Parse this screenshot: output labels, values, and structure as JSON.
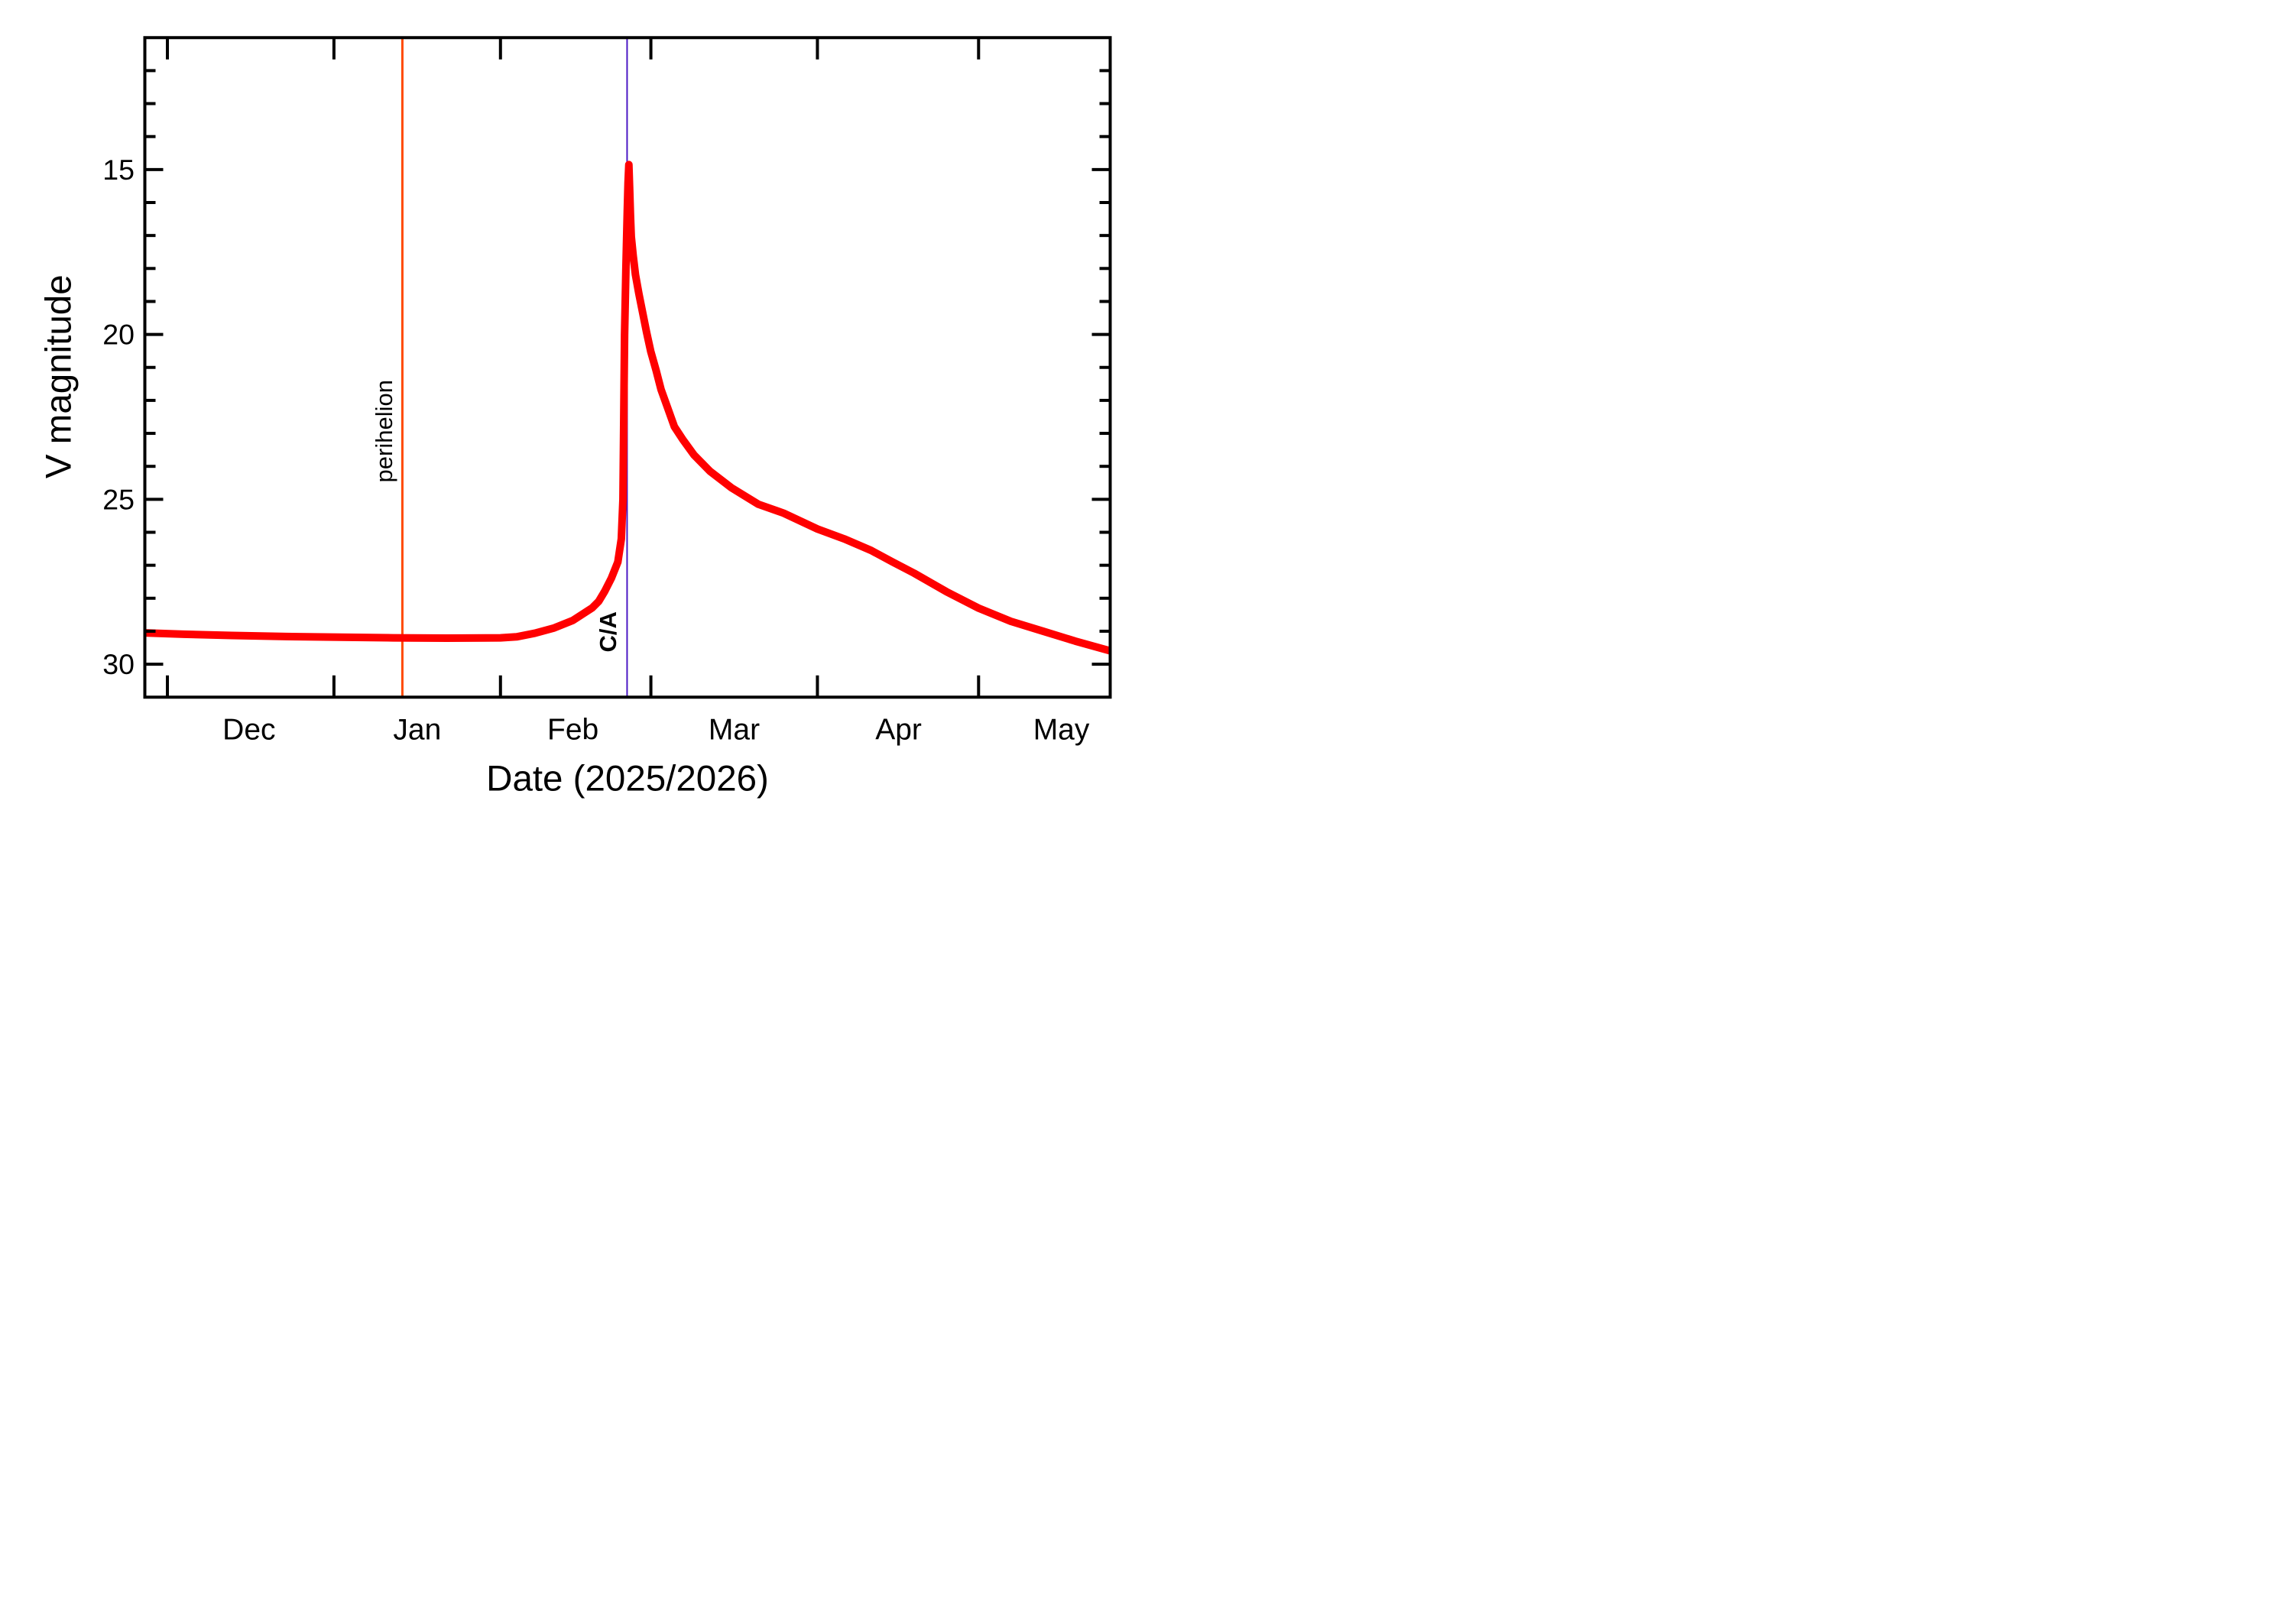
{
  "chart_data": {
    "type": "line",
    "title": "",
    "grid": false,
    "legend": "none",
    "x_axis": {
      "label": "Date (2025/2026)",
      "unit": "days from 2025-Dec-01",
      "day_min": -4.2,
      "day_max": 175.5,
      "month_ticks_days": [
        0,
        31,
        62,
        90,
        121,
        151
      ],
      "month_labels": [
        {
          "label": "Dec",
          "day": 15.2
        },
        {
          "label": "Jan",
          "day": 46.5
        },
        {
          "label": "Feb",
          "day": 75.5
        },
        {
          "label": "Mar",
          "day": 105.5
        },
        {
          "label": "Apr",
          "day": 136.1
        },
        {
          "label": "May",
          "day": 166.4
        }
      ]
    },
    "y_axis": {
      "label": "V magnitude",
      "mag_top": 11,
      "mag_bottom": 31,
      "major_ticks": [
        15,
        20,
        25,
        30
      ],
      "minor_tick_step": 1,
      "orientation": "inverted (brighter values up)"
    },
    "series": [
      {
        "name": "predicted V magnitude",
        "color": "#ff0000",
        "stroke_width": 20,
        "peak": {
          "day": 85.9,
          "mag": 14.85
        },
        "points": [
          [
            -4.2,
            29.05
          ],
          [
            3,
            29.09
          ],
          [
            12,
            29.13
          ],
          [
            22,
            29.16
          ],
          [
            32,
            29.18
          ],
          [
            42,
            29.2
          ],
          [
            52,
            29.21
          ],
          [
            62,
            29.2
          ],
          [
            65,
            29.17
          ],
          [
            68.4,
            29.06
          ],
          [
            72,
            28.9
          ],
          [
            75.5,
            28.67
          ],
          [
            79.1,
            28.29
          ],
          [
            80.3,
            28.09
          ],
          [
            81.4,
            27.79
          ],
          [
            82.65,
            27.39
          ],
          [
            83.85,
            26.9
          ],
          [
            84.5,
            26.2
          ],
          [
            84.8,
            25.0
          ],
          [
            84.95,
            22.5
          ],
          [
            85.1,
            20.0
          ],
          [
            85.35,
            18.0
          ],
          [
            85.6,
            16.3
          ],
          [
            85.75,
            15.4
          ],
          [
            85.9,
            14.85
          ],
          [
            86.05,
            15.6
          ],
          [
            86.2,
            16.4
          ],
          [
            86.35,
            17.03
          ],
          [
            86.7,
            17.61
          ],
          [
            87.13,
            18.19
          ],
          [
            87.77,
            18.77
          ],
          [
            88.48,
            19.35
          ],
          [
            89.19,
            19.93
          ],
          [
            89.97,
            20.51
          ],
          [
            90.97,
            21.09
          ],
          [
            91.89,
            21.67
          ],
          [
            93.17,
            22.25
          ],
          [
            94.38,
            22.8
          ],
          [
            96,
            23.2
          ],
          [
            98,
            23.65
          ],
          [
            101,
            24.15
          ],
          [
            105,
            24.65
          ],
          [
            110,
            25.15
          ],
          [
            114.7,
            25.42
          ],
          [
            121,
            25.9
          ],
          [
            126,
            26.2
          ],
          [
            131,
            26.55
          ],
          [
            135,
            26.9
          ],
          [
            139,
            27.24
          ],
          [
            145,
            27.8
          ],
          [
            151,
            28.3
          ],
          [
            157,
            28.7
          ],
          [
            163,
            29.0
          ],
          [
            169,
            29.3
          ],
          [
            175.4,
            29.59
          ]
        ]
      }
    ],
    "annotations": [
      {
        "name": "perihelion",
        "label": "perihelion",
        "day": 43.74,
        "color": "#ff4a00",
        "line_width": 6,
        "label_bold": false
      },
      {
        "name": "close-approach",
        "label": "C/A",
        "day": 85.57,
        "color": "#4b18c4",
        "line_width": 4,
        "label_bold": true
      }
    ]
  }
}
